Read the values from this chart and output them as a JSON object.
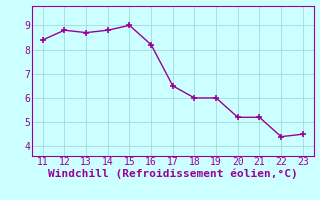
{
  "x": [
    11,
    12,
    13,
    14,
    15,
    16,
    17,
    18,
    19,
    20,
    21,
    22,
    23
  ],
  "y": [
    8.4,
    8.8,
    8.7,
    8.8,
    9.0,
    8.2,
    6.5,
    6.0,
    6.0,
    5.2,
    5.2,
    4.4,
    4.5
  ],
  "line_color": "#990099",
  "marker": "+",
  "marker_size": 4,
  "bg_color": "#ccffff",
  "grid_color": "#aadddd",
  "xlabel": "Windchill (Refroidissement éolien,°C)",
  "xlabel_color": "#990099",
  "xlabel_fontsize": 8,
  "tick_color": "#990099",
  "tick_fontsize": 7,
  "ylim": [
    3.6,
    9.8
  ],
  "xlim": [
    10.5,
    23.5
  ],
  "yticks": [
    4,
    5,
    6,
    7,
    8,
    9
  ],
  "xticks": [
    11,
    12,
    13,
    14,
    15,
    16,
    17,
    18,
    19,
    20,
    21,
    22,
    23
  ],
  "linewidth": 1.0,
  "spine_color": "#990099"
}
